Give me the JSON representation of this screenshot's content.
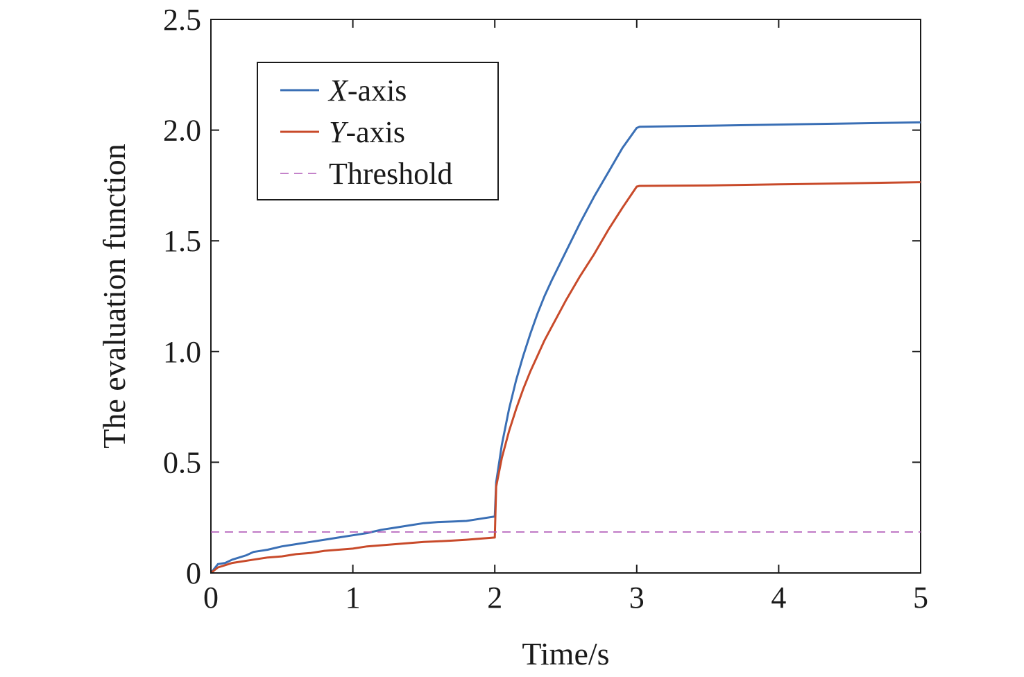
{
  "chart_data": {
    "type": "line",
    "xlabel": "Time/s",
    "ylabel": "The evaluation function",
    "xlim": [
      0,
      5
    ],
    "ylim": [
      0,
      2.5
    ],
    "xticks": [
      0,
      1,
      2,
      3,
      4,
      5
    ],
    "xtick_labels": [
      "0",
      "1",
      "2",
      "3",
      "4",
      "5"
    ],
    "yticks": [
      0,
      0.5,
      1.0,
      1.5,
      2.0,
      2.5
    ],
    "ytick_labels": [
      "0",
      "0.5",
      "1.0",
      "1.5",
      "2.0",
      "2.5"
    ],
    "grid": false,
    "legend_position": "top-left",
    "series": [
      {
        "name_italic": "X",
        "name_suffix": "-axis",
        "color": "#3a6fb5",
        "style": "solid",
        "x": [
          0,
          0.05,
          0.1,
          0.15,
          0.2,
          0.25,
          0.3,
          0.4,
          0.5,
          0.6,
          0.7,
          0.8,
          0.9,
          1.0,
          1.1,
          1.2,
          1.3,
          1.4,
          1.5,
          1.6,
          1.7,
          1.8,
          1.9,
          2.0,
          2.01,
          2.05,
          2.1,
          2.15,
          2.2,
          2.25,
          2.3,
          2.35,
          2.4,
          2.5,
          2.6,
          2.7,
          2.8,
          2.9,
          3.0,
          3.02,
          3.5,
          4.0,
          4.5,
          5.0
        ],
        "y": [
          0,
          0.04,
          0.045,
          0.06,
          0.07,
          0.08,
          0.095,
          0.105,
          0.12,
          0.13,
          0.14,
          0.15,
          0.16,
          0.17,
          0.18,
          0.195,
          0.205,
          0.215,
          0.225,
          0.23,
          0.232,
          0.235,
          0.245,
          0.255,
          0.41,
          0.58,
          0.74,
          0.87,
          0.98,
          1.08,
          1.17,
          1.25,
          1.32,
          1.45,
          1.58,
          1.7,
          1.81,
          1.92,
          2.01,
          2.015,
          2.02,
          2.025,
          2.03,
          2.035
        ]
      },
      {
        "name_italic": "Y",
        "name_suffix": "-axis",
        "color": "#c84a2a",
        "style": "solid",
        "x": [
          0,
          0.05,
          0.1,
          0.15,
          0.2,
          0.3,
          0.4,
          0.5,
          0.6,
          0.7,
          0.8,
          0.9,
          1.0,
          1.1,
          1.2,
          1.3,
          1.4,
          1.5,
          1.6,
          1.7,
          1.8,
          1.9,
          2.0,
          2.01,
          2.05,
          2.1,
          2.15,
          2.2,
          2.25,
          2.3,
          2.35,
          2.4,
          2.5,
          2.6,
          2.7,
          2.8,
          2.9,
          3.0,
          3.02,
          3.5,
          4.0,
          4.5,
          5.0
        ],
        "y": [
          0,
          0.025,
          0.035,
          0.045,
          0.05,
          0.06,
          0.07,
          0.075,
          0.085,
          0.09,
          0.1,
          0.105,
          0.11,
          0.12,
          0.125,
          0.13,
          0.135,
          0.14,
          0.143,
          0.146,
          0.15,
          0.155,
          0.16,
          0.39,
          0.52,
          0.64,
          0.74,
          0.83,
          0.91,
          0.98,
          1.05,
          1.11,
          1.23,
          1.34,
          1.44,
          1.55,
          1.65,
          1.745,
          1.748,
          1.75,
          1.755,
          1.76,
          1.765
        ]
      },
      {
        "name": "Threshold",
        "color": "#b05ab8",
        "style": "dashed",
        "x": [
          0,
          5
        ],
        "y": [
          0.185,
          0.185
        ]
      }
    ]
  }
}
